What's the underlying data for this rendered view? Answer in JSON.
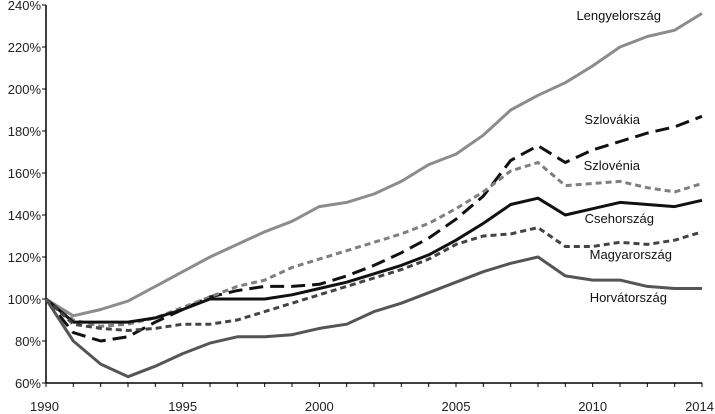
{
  "chart_data": {
    "type": "line",
    "title": "",
    "xlabel": "",
    "ylabel": "",
    "xlim": [
      1990,
      2014
    ],
    "ylim": [
      60,
      240
    ],
    "x_ticks": [
      1990,
      1995,
      2000,
      2005,
      2010,
      2014
    ],
    "y_ticks": [
      60,
      80,
      100,
      120,
      140,
      160,
      180,
      200,
      220,
      240
    ],
    "y_tick_format": "%",
    "grid": false,
    "legend": "inline-right",
    "x": [
      1990,
      1991,
      1992,
      1993,
      1994,
      1995,
      1996,
      1997,
      1998,
      1999,
      2000,
      2001,
      2002,
      2003,
      2004,
      2005,
      2006,
      2007,
      2008,
      2009,
      2010,
      2011,
      2012,
      2013,
      2014
    ],
    "series": [
      {
        "name": "Lengyelország",
        "color": "#8c8c8c",
        "dash": "solid",
        "values": [
          100,
          92,
          95,
          99,
          106,
          113,
          120,
          126,
          132,
          137,
          144,
          146,
          150,
          156,
          164,
          169,
          178,
          190,
          197,
          203,
          211,
          220,
          225,
          228,
          236
        ]
      },
      {
        "name": "Szlovákia",
        "color": "#111111",
        "dash": "long-dash",
        "values": [
          100,
          84,
          80,
          82,
          89,
          95,
          101,
          104,
          106,
          106,
          107,
          111,
          116,
          122,
          129,
          138,
          149,
          166,
          173,
          165,
          171,
          175,
          179,
          182,
          187
        ]
      },
      {
        "name": "Szlovénia",
        "color": "#7f7f7f",
        "dash": "short-dash",
        "values": [
          100,
          90,
          87,
          88,
          91,
          96,
          101,
          106,
          109,
          115,
          119,
          123,
          127,
          131,
          136,
          143,
          151,
          161,
          165,
          154,
          155,
          156,
          153,
          151,
          155
        ]
      },
      {
        "name": "Csehország",
        "color": "#111111",
        "dash": "solid",
        "values": [
          100,
          89,
          89,
          89,
          91,
          95,
          100,
          100,
          100,
          102,
          105,
          108,
          112,
          116,
          121,
          128,
          136,
          145,
          148,
          140,
          143,
          146,
          145,
          144,
          147
        ]
      },
      {
        "name": "Magyarország",
        "color": "#444444",
        "dash": "short-dash",
        "values": [
          100,
          88,
          86,
          85,
          86,
          88,
          88,
          90,
          94,
          98,
          102,
          106,
          110,
          114,
          119,
          126,
          130,
          131,
          134,
          125,
          125,
          127,
          126,
          128,
          132
        ]
      },
      {
        "name": "Horvátország",
        "color": "#555555",
        "dash": "solid",
        "values": [
          100,
          80,
          69,
          63,
          68,
          74,
          79,
          82,
          82,
          83,
          86,
          88,
          94,
          98,
          103,
          108,
          113,
          117,
          120,
          111,
          109,
          109,
          106,
          105,
          105
        ]
      }
    ]
  }
}
